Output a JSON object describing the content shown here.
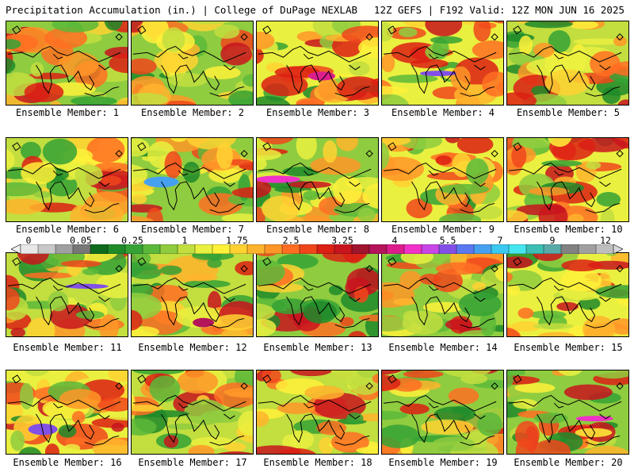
{
  "header": {
    "title_left": "Precipitation Accumulation (in.) | College of DuPage NEXLAB",
    "title_right": "12Z GEFS | F192 Valid: 12Z MON JUN 16 2025"
  },
  "colorbar": {
    "tick_labels": [
      "0",
      "0.05",
      "0.25",
      "1",
      "1.75",
      "2.5",
      "3.25",
      "4",
      "5.5",
      "7",
      "9",
      "12"
    ],
    "colors": [
      "#e8e8e8",
      "#c8c8c8",
      "#a0a0a0",
      "#787878",
      "#0e6b1e",
      "#1f8a2a",
      "#35a235",
      "#5cb83a",
      "#8fcc3f",
      "#c2de3f",
      "#eaf03f",
      "#fff13a",
      "#ffd232",
      "#ffb42d",
      "#ff9628",
      "#ff6e23",
      "#f0461c",
      "#dc2014",
      "#c8141e",
      "#a0142d",
      "#b4145a",
      "#dc1e8c",
      "#f032c8",
      "#c846e6",
      "#8250e6",
      "#5a78f0",
      "#46a0f0",
      "#3cc8f0",
      "#46e6f0",
      "#3cbeb4",
      "#5aaaaa",
      "#828282",
      "#a0a0a0",
      "#bebebe"
    ]
  },
  "members": [
    {
      "label": "Ensemble Member: 1"
    },
    {
      "label": "Ensemble Member: 2"
    },
    {
      "label": "Ensemble Member: 3"
    },
    {
      "label": "Ensemble Member: 4"
    },
    {
      "label": "Ensemble Member: 5"
    },
    {
      "label": "Ensemble Member: 6"
    },
    {
      "label": "Ensemble Member: 7"
    },
    {
      "label": "Ensemble Member: 8"
    },
    {
      "label": "Ensemble Member: 9"
    },
    {
      "label": "Ensemble Member: 10"
    },
    {
      "label": "Ensemble Member: 11"
    },
    {
      "label": "Ensemble Member: 12"
    },
    {
      "label": "Ensemble Member: 13"
    },
    {
      "label": "Ensemble Member: 14"
    },
    {
      "label": "Ensemble Member: 15"
    },
    {
      "label": "Ensemble Member: 16"
    },
    {
      "label": "Ensemble Member: 17"
    },
    {
      "label": "Ensemble Member: 18"
    },
    {
      "label": "Ensemble Member: 19"
    },
    {
      "label": "Ensemble Member: 20"
    }
  ]
}
